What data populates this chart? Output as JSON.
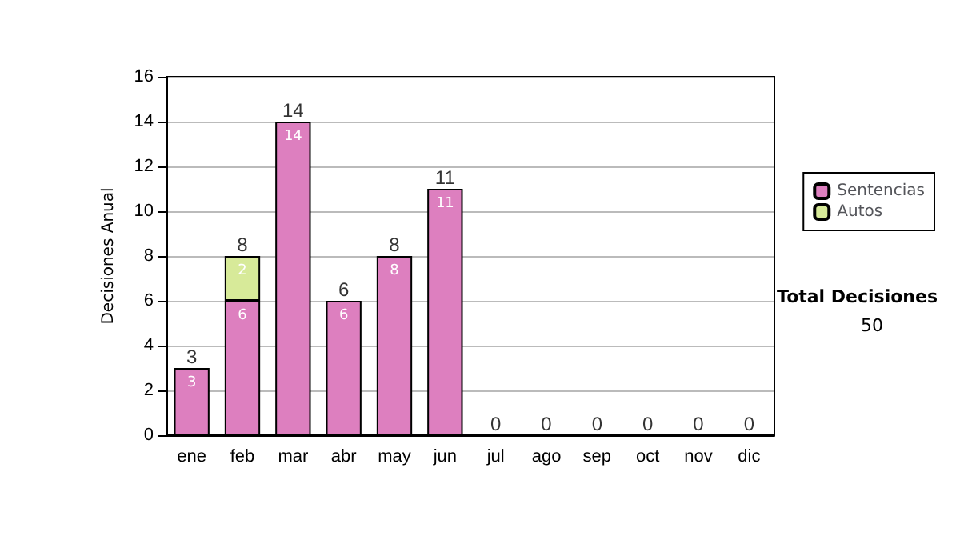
{
  "chart_data": {
    "type": "bar",
    "ylabel": "Decisiones Anual",
    "categories": [
      "ene",
      "feb",
      "mar",
      "abr",
      "may",
      "jun",
      "jul",
      "ago",
      "sep",
      "oct",
      "nov",
      "dic"
    ],
    "stacked": true,
    "series": [
      {
        "name": "Sentencias",
        "color": "#dd7fbf",
        "values": [
          3,
          6,
          14,
          6,
          8,
          11,
          0,
          0,
          0,
          0,
          0,
          0
        ],
        "value_labels": [
          "3",
          "6",
          "14",
          "6",
          "8",
          "11",
          null,
          null,
          null,
          null,
          null,
          null
        ]
      },
      {
        "name": "Autos",
        "color": "#d7ea99",
        "values": [
          0,
          2,
          0,
          0,
          0,
          0,
          0,
          0,
          0,
          0,
          0,
          0
        ],
        "value_labels": [
          null,
          "2",
          null,
          null,
          null,
          null,
          null,
          null,
          null,
          null,
          null,
          null
        ]
      }
    ],
    "totals": [
      "3",
      "8",
      "14",
      "6",
      "8",
      "11",
      "0",
      "0",
      "0",
      "0",
      "0",
      "0"
    ],
    "ylim": [
      0,
      16
    ],
    "yticks": [
      0,
      2,
      4,
      6,
      8,
      10,
      12,
      14,
      16
    ],
    "grid": "y",
    "legend": "right",
    "annotations": [
      "Total Decisiones",
      "50"
    ]
  }
}
